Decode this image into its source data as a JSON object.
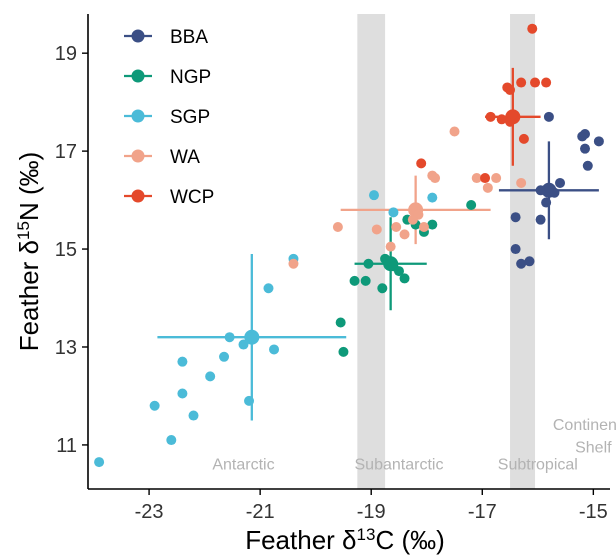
{
  "chart_data": {
    "type": "scatter",
    "title": "",
    "xlabel_parts": [
      "Feather δ",
      "13",
      "C (‰)"
    ],
    "ylabel_parts": [
      "Feather δ",
      "15",
      "N (‰)"
    ],
    "xlim": [
      -24.1,
      -14.7
    ],
    "ylim": [
      10.1,
      19.8
    ],
    "xticks": [
      -23,
      -21,
      -19,
      -17,
      -15
    ],
    "yticks": [
      11,
      13,
      15,
      17,
      19
    ],
    "grid": false,
    "legend_position": "top-left",
    "shaded_bands": [
      {
        "x0": -19.25,
        "x1": -18.75
      },
      {
        "x0": -16.5,
        "x1": -16.05
      }
    ],
    "region_labels": [
      {
        "text": "Antarctic",
        "x": -21.3,
        "y": 10.5
      },
      {
        "text": "Subantarctic",
        "x": -18.5,
        "y": 10.5
      },
      {
        "text": "Subtropical",
        "x": -16.0,
        "y": 10.5
      },
      {
        "text": "Continental",
        "x": -15.0,
        "y": 11.3
      },
      {
        "text": "Shelf",
        "x": -15.0,
        "y": 10.85
      }
    ],
    "series": [
      {
        "name": "BBA",
        "color": "#3b4f85",
        "points": [
          [
            -15.8,
            17.7
          ],
          [
            -15.2,
            17.3
          ],
          [
            -15.15,
            17.35
          ],
          [
            -15.15,
            17.05
          ],
          [
            -14.9,
            17.2
          ],
          [
            -15.1,
            16.7
          ],
          [
            -14.5,
            16.65
          ],
          [
            -15.6,
            16.35
          ],
          [
            -15.7,
            16.15
          ],
          [
            -15.85,
            15.95
          ],
          [
            -15.95,
            15.6
          ],
          [
            -16.4,
            15.65
          ],
          [
            -16.4,
            15.0
          ],
          [
            -16.3,
            14.7
          ],
          [
            -16.15,
            14.75
          ],
          [
            -15.95,
            16.2
          ],
          [
            -15.8,
            16.25
          ]
        ],
        "mean": [
          -15.8,
          16.2
        ],
        "xerr": 0.9,
        "yerr": 1.0
      },
      {
        "name": "NGP",
        "color": "#0e9979",
        "points": [
          [
            -19.55,
            13.5
          ],
          [
            -19.5,
            12.9
          ],
          [
            -19.3,
            14.35
          ],
          [
            -19.1,
            14.35
          ],
          [
            -19.05,
            14.7
          ],
          [
            -18.8,
            14.2
          ],
          [
            -18.75,
            14.8
          ],
          [
            -18.7,
            14.75
          ],
          [
            -18.6,
            14.65
          ],
          [
            -18.5,
            14.55
          ],
          [
            -18.4,
            14.4
          ],
          [
            -18.35,
            15.6
          ],
          [
            -18.2,
            15.5
          ],
          [
            -18.05,
            15.35
          ],
          [
            -17.9,
            15.5
          ],
          [
            -17.2,
            15.9
          ]
        ],
        "mean": [
          -18.65,
          14.7
        ],
        "xerr": 0.65,
        "yerr": 0.95
      },
      {
        "name": "SGP",
        "color": "#4bbbd8",
        "points": [
          [
            -23.9,
            10.65
          ],
          [
            -22.9,
            11.8
          ],
          [
            -22.6,
            11.1
          ],
          [
            -22.4,
            12.7
          ],
          [
            -22.4,
            12.05
          ],
          [
            -22.2,
            11.6
          ],
          [
            -21.9,
            12.4
          ],
          [
            -21.65,
            12.8
          ],
          [
            -21.55,
            13.2
          ],
          [
            -21.3,
            13.05
          ],
          [
            -21.2,
            11.9
          ],
          [
            -21.15,
            13.2
          ],
          [
            -20.85,
            14.2
          ],
          [
            -20.75,
            12.95
          ],
          [
            -20.4,
            14.8
          ],
          [
            -18.95,
            16.1
          ],
          [
            -18.6,
            15.75
          ],
          [
            -17.9,
            16.05
          ]
        ],
        "mean": [
          -21.15,
          13.2
        ],
        "xerr": 1.7,
        "yerr": 1.7
      },
      {
        "name": "WA",
        "color": "#f1a38a",
        "points": [
          [
            -20.4,
            14.7
          ],
          [
            -19.6,
            15.45
          ],
          [
            -18.9,
            15.4
          ],
          [
            -18.65,
            15.05
          ],
          [
            -18.55,
            15.45
          ],
          [
            -18.4,
            15.3
          ],
          [
            -18.25,
            15.6
          ],
          [
            -18.2,
            15.85
          ],
          [
            -18.15,
            15.7
          ],
          [
            -18.05,
            15.45
          ],
          [
            -17.9,
            16.5
          ],
          [
            -17.85,
            16.45
          ],
          [
            -17.5,
            17.4
          ],
          [
            -17.1,
            16.45
          ],
          [
            -16.9,
            16.25
          ],
          [
            -16.75,
            16.45
          ],
          [
            -16.3,
            16.35
          ]
        ],
        "mean": [
          -18.2,
          15.8
        ],
        "xerr": 1.35,
        "yerr": 0.7
      },
      {
        "name": "WCP",
        "color": "#e4492b",
        "points": [
          [
            -18.1,
            16.75
          ],
          [
            -16.95,
            16.45
          ],
          [
            -16.85,
            17.7
          ],
          [
            -16.65,
            17.65
          ],
          [
            -16.55,
            18.3
          ],
          [
            -16.5,
            18.25
          ],
          [
            -16.5,
            17.6
          ],
          [
            -16.45,
            17.75
          ],
          [
            -16.3,
            18.4
          ],
          [
            -16.25,
            17.25
          ],
          [
            -16.1,
            19.5
          ],
          [
            -16.05,
            18.4
          ],
          [
            -15.85,
            18.4
          ]
        ],
        "mean": [
          -16.45,
          17.7
        ],
        "xerr": 0.5,
        "yerr": 1.0
      }
    ]
  }
}
